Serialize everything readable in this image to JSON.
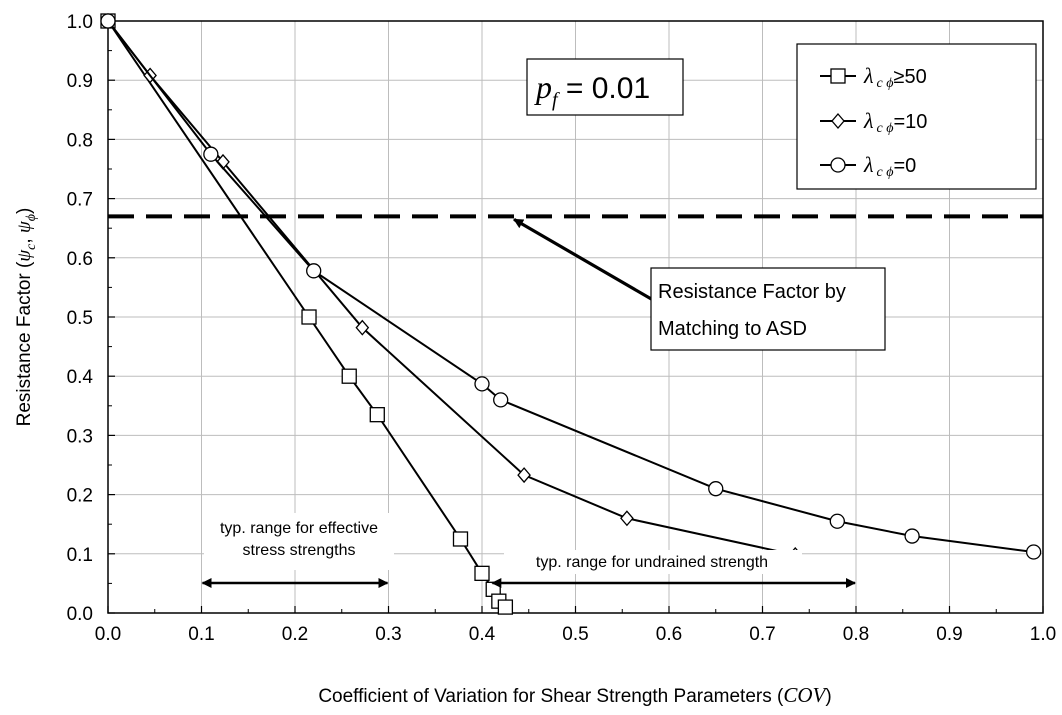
{
  "chart_data": {
    "type": "line",
    "xlabel": "Coefficient of Variation for Shear Strength Parameters (",
    "xlabel_italic": "COV",
    "xlabel_close": ")",
    "ylabel": "Resistance Factor (",
    "ylabel_sym1": "ψ",
    "ylabel_sub1": "c",
    "ylabel_sep": ", ",
    "ylabel_sym2": "ψ",
    "ylabel_sub2": "ϕ",
    "ylabel_close": ")",
    "xlim": [
      0,
      1.0
    ],
    "ylim": [
      0,
      1.0
    ],
    "xticks": [
      "0.0",
      "0.1",
      "0.2",
      "0.3",
      "0.4",
      "0.5",
      "0.6",
      "0.7",
      "0.8",
      "0.9",
      "1.0"
    ],
    "yticks": [
      "0.0",
      "0.1",
      "0.2",
      "0.3",
      "0.4",
      "0.5",
      "0.6",
      "0.7",
      "0.8",
      "0.9",
      "1.0"
    ],
    "grid": true,
    "legend_position": "top-right",
    "pf_label": {
      "italic": "p",
      "sub": "f",
      "rest": " = 0.01"
    },
    "series": [
      {
        "name": "λcϕ≥50",
        "legend_sym": "λ",
        "legend_sub": "c ϕ",
        "legend_rest": "≥50",
        "marker": "square",
        "x": [
          0.0,
          0.215,
          0.258,
          0.288,
          0.377,
          0.4,
          0.412,
          0.418,
          0.425
        ],
        "y": [
          1.0,
          0.5,
          0.4,
          0.335,
          0.125,
          0.067,
          0.04,
          0.02,
          0.01
        ]
      },
      {
        "name": "λcϕ=10",
        "legend_sym": "λ",
        "legend_sub": "c ϕ",
        "legend_rest": "=10",
        "marker": "diamond",
        "x": [
          0.0,
          0.045,
          0.123,
          0.272,
          0.445,
          0.555,
          0.735
        ],
        "y": [
          1.0,
          0.908,
          0.762,
          0.482,
          0.233,
          0.16,
          0.098
        ]
      },
      {
        "name": "λcϕ=0",
        "legend_sym": "λ",
        "legend_sub": "c ϕ",
        "legend_rest": "=0",
        "marker": "circle",
        "x": [
          0.0,
          0.11,
          0.22,
          0.4,
          0.42,
          0.65,
          0.78,
          0.86,
          0.99
        ],
        "y": [
          1.0,
          0.775,
          0.578,
          0.387,
          0.36,
          0.21,
          0.155,
          0.13,
          0.103
        ]
      }
    ],
    "reference_line": {
      "y": 0.67,
      "style": "dashed"
    },
    "annotations": {
      "asd_line1": "Resistance Factor by",
      "asd_line2": "Matching to ASD",
      "asd_arrow_target": [
        0.43,
        0.67
      ],
      "effective_line1": "typ. range for effective",
      "effective_line2": "stress strengths",
      "effective_range": [
        0.1,
        0.3
      ],
      "undrained_text": "typ. range for undrained strength",
      "undrained_range": [
        0.41,
        0.8
      ]
    }
  }
}
